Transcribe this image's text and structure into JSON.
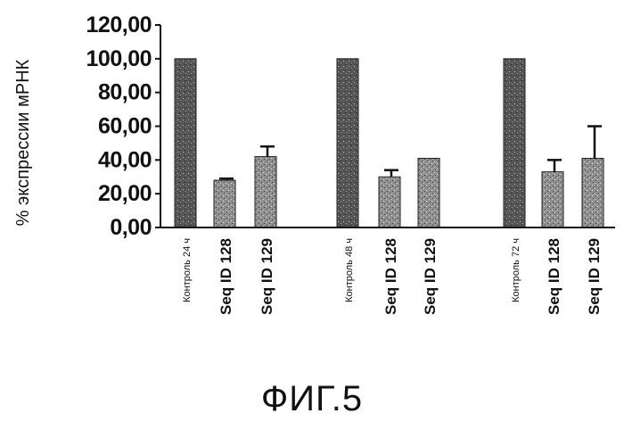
{
  "figure": {
    "caption": "ФИГ.5"
  },
  "chart_data": {
    "type": "bar",
    "ylabel": "% экспрессии мРНК",
    "xlabel": "",
    "ylim": [
      0,
      120
    ],
    "yticks": [
      "0,00",
      "20,00",
      "40,00",
      "60,00",
      "80,00",
      "100,00",
      "120,00"
    ],
    "categories": [
      "Контроль 24 ч",
      "Seq ID 128",
      "Seq ID 129",
      "Контроль 48 ч",
      "Seq ID 128",
      "Seq ID 129",
      "Контроль 72 ч",
      "Seq ID 128",
      "Seq ID 129"
    ],
    "values": [
      100,
      28,
      42,
      100,
      30,
      41,
      100,
      33,
      41
    ],
    "error_upper": [
      0,
      1,
      6,
      0,
      4,
      0,
      0,
      7,
      19
    ],
    "groups": [
      "24 ч",
      "48 ч",
      "72 ч"
    ]
  },
  "style": {
    "bar_fill": "#8c8c8c",
    "control_fill": "#505050",
    "axis_color": "#111111"
  }
}
